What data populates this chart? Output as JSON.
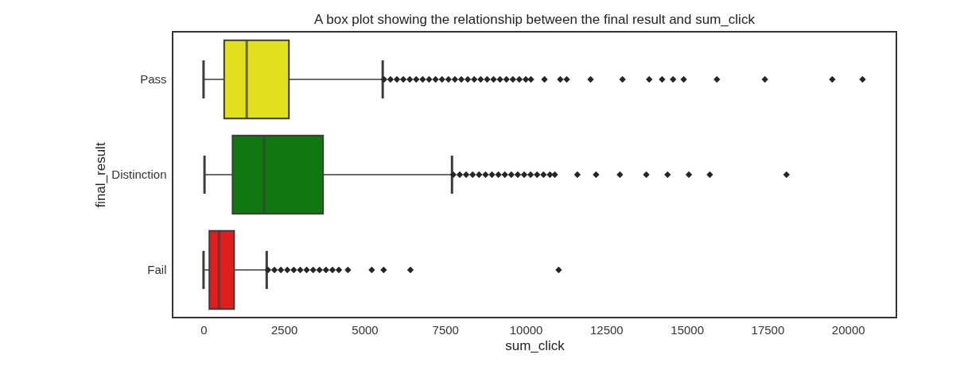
{
  "chart_data": {
    "type": "box",
    "title": "A box plot showing the relationship between the final result and sum_click",
    "xlabel": "sum_click",
    "ylabel": "final_result",
    "orientation": "horizontal",
    "marker": "diamond",
    "categories": [
      "Pass",
      "Distinction",
      "Fail"
    ],
    "colors": [
      "#e0e01e",
      "#117711",
      "#e01e1e"
    ],
    "xlim": [
      -960,
      21500
    ],
    "xticks": [
      0,
      2500,
      5000,
      7500,
      10000,
      12500,
      15000,
      17500,
      20000
    ],
    "boxes": [
      {
        "low": 0,
        "q1": 640,
        "median": 1340,
        "q3": 2650,
        "high": 5560,
        "outliers": [
          5600,
          5800,
          6000,
          6200,
          6400,
          6600,
          6800,
          7000,
          7200,
          7400,
          7600,
          7800,
          8000,
          8200,
          8400,
          8600,
          8800,
          9000,
          9200,
          9400,
          9600,
          9800,
          10000,
          10160,
          10580,
          11070,
          11270,
          12010,
          13000,
          13830,
          14230,
          14570,
          14900,
          15930,
          17420,
          19510,
          20450
        ]
      },
      {
        "low": 30,
        "q1": 900,
        "median": 1880,
        "q3": 3710,
        "high": 7710,
        "outliers": [
          7750,
          7950,
          8150,
          8350,
          8550,
          8750,
          8950,
          9150,
          9350,
          9550,
          9750,
          9950,
          10150,
          10350,
          10550,
          10750,
          10900,
          11600,
          12180,
          12920,
          13740,
          14400,
          15060,
          15710,
          18090
        ]
      },
      {
        "low": 0,
        "q1": 180,
        "median": 480,
        "q3": 950,
        "high": 1960,
        "outliers": [
          2000,
          2200,
          2400,
          2600,
          2800,
          3000,
          3200,
          3400,
          3600,
          3800,
          4000,
          4200,
          4480,
          5220,
          5590,
          6420,
          11020
        ]
      }
    ]
  }
}
